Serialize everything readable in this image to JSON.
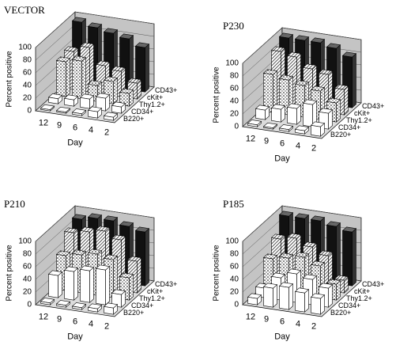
{
  "chart_data": [
    {
      "type": "bar3d",
      "title": "VECTOR",
      "ylabel": "Percent positive",
      "xlabel": "Day",
      "categories": [
        "12",
        "9",
        "6",
        "4",
        "2"
      ],
      "ylim": [
        0,
        100
      ],
      "yticks": [
        0,
        20,
        40,
        60,
        80,
        100
      ],
      "grid": true,
      "series": [
        {
          "name": "B220+",
          "color": "#ffffff",
          "pattern": "none",
          "values": [
            2,
            2,
            3,
            10,
            5
          ]
        },
        {
          "name": "CD34+",
          "color": "#ffffff",
          "pattern": "none",
          "values": [
            8,
            10,
            15,
            20,
            10
          ]
        },
        {
          "name": "Thy1.2+",
          "color": "#ffffff",
          "pattern": "dots",
          "values": [
            55,
            60,
            25,
            35,
            20
          ]
        },
        {
          "name": "cKit+",
          "color": "#ffffff",
          "pattern": "hatch",
          "values": [
            60,
            70,
            45,
            40,
            25
          ]
        },
        {
          "name": "CD43+",
          "color": "#111111",
          "pattern": "solid",
          "values": [
            95,
            90,
            85,
            80,
            70
          ]
        }
      ]
    },
    {
      "type": "bar3d",
      "title": "P230",
      "ylabel": "Percent positive",
      "xlabel": "Day",
      "categories": [
        "12",
        "9",
        "6",
        "4",
        "2"
      ],
      "ylim": [
        0,
        100
      ],
      "yticks": [
        0,
        20,
        40,
        60,
        80,
        100
      ],
      "grid": true,
      "series": [
        {
          "name": "B220+",
          "color": "#ffffff",
          "pattern": "none",
          "values": [
            3,
            2,
            3,
            5,
            15
          ]
        },
        {
          "name": "CD34+",
          "color": "#ffffff",
          "pattern": "none",
          "values": [
            15,
            20,
            25,
            35,
            25
          ]
        },
        {
          "name": "Thy1.2+",
          "color": "#ffffff",
          "pattern": "dots",
          "values": [
            60,
            55,
            50,
            45,
            30
          ]
        },
        {
          "name": "cKit+",
          "color": "#ffffff",
          "pattern": "hatch",
          "values": [
            85,
            80,
            65,
            60,
            40
          ]
        },
        {
          "name": "CD43+",
          "color": "#111111",
          "pattern": "solid",
          "values": [
            95,
            95,
            95,
            90,
            80
          ]
        }
      ]
    },
    {
      "type": "bar3d",
      "title": "P210",
      "ylabel": "Percent positive",
      "xlabel": "Day",
      "categories": [
        "12",
        "9",
        "6",
        "4",
        "2"
      ],
      "ylim": [
        0,
        100
      ],
      "yticks": [
        0,
        20,
        40,
        60,
        80,
        100
      ],
      "grid": true,
      "series": [
        {
          "name": "B220+",
          "color": "#ffffff",
          "pattern": "none",
          "values": [
            3,
            3,
            3,
            5,
            10
          ]
        },
        {
          "name": "CD34+",
          "color": "#ffffff",
          "pattern": "none",
          "values": [
            35,
            45,
            50,
            55,
            20
          ]
        },
        {
          "name": "Thy1.2+",
          "color": "#ffffff",
          "pattern": "dots",
          "values": [
            55,
            60,
            65,
            60,
            35
          ]
        },
        {
          "name": "cKit+",
          "color": "#ffffff",
          "pattern": "hatch",
          "values": [
            80,
            85,
            90,
            80,
            50
          ]
        },
        {
          "name": "CD43+",
          "color": "#111111",
          "pattern": "solid",
          "values": [
            90,
            95,
            95,
            90,
            85
          ]
        }
      ]
    },
    {
      "type": "bar3d",
      "title": "P185",
      "ylabel": "Percent positive",
      "xlabel": "Day",
      "categories": [
        "12",
        "9",
        "6",
        "4",
        "2"
      ],
      "ylim": [
        0,
        100
      ],
      "yticks": [
        0,
        20,
        40,
        60,
        80,
        100
      ],
      "grid": true,
      "series": [
        {
          "name": "B220+",
          "color": "#ffffff",
          "pattern": "none",
          "values": [
            10,
            30,
            35,
            30,
            25
          ]
        },
        {
          "name": "CD34+",
          "color": "#ffffff",
          "pattern": "none",
          "values": [
            15,
            35,
            45,
            40,
            30
          ]
        },
        {
          "name": "Thy1.2+",
          "color": "#ffffff",
          "pattern": "dots",
          "values": [
            50,
            55,
            60,
            50,
            25
          ]
        },
        {
          "name": "cKit+",
          "color": "#ffffff",
          "pattern": "hatch",
          "values": [
            70,
            75,
            65,
            55,
            20
          ]
        },
        {
          "name": "CD43+",
          "color": "#111111",
          "pattern": "solid",
          "values": [
            95,
            95,
            95,
            90,
            85
          ]
        }
      ]
    }
  ]
}
